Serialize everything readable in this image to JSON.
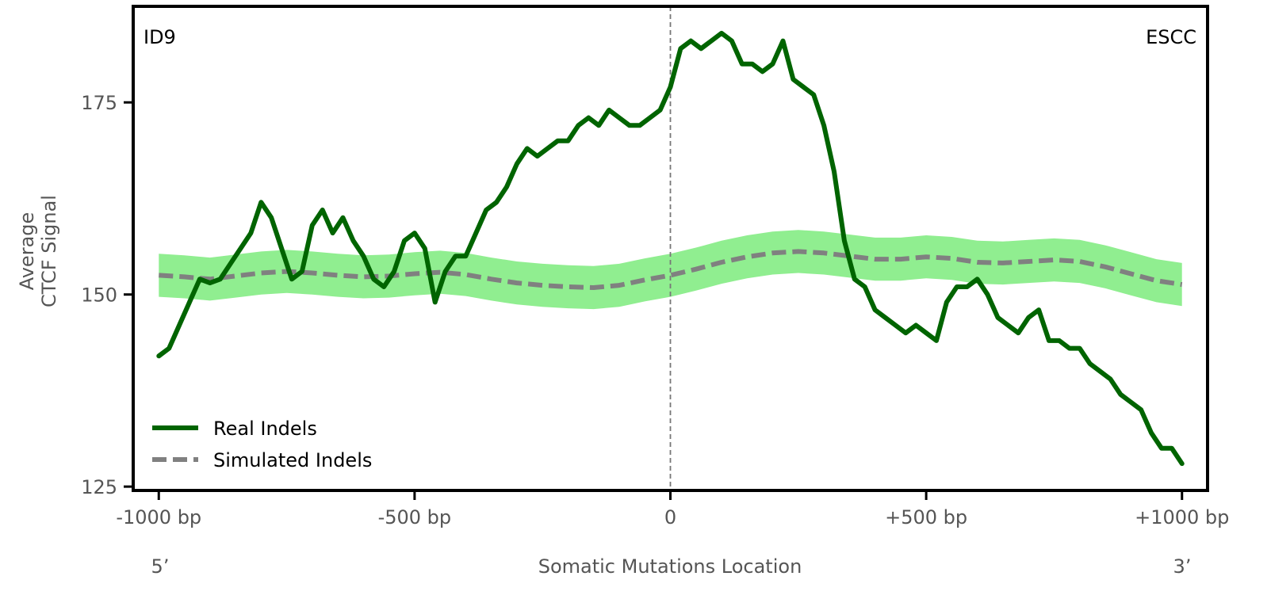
{
  "chart_data": {
    "type": "line",
    "panel_label_left": "ID9",
    "panel_label_right": "ESCC",
    "xlabel": "Somatic Mutations Location",
    "ylabel_line1": "Average",
    "ylabel_line2": "CTCF Signal",
    "end_label_left": "5’",
    "end_label_right": "3’",
    "xlim": [
      -1050,
      1050
    ],
    "ylim": [
      124.5,
      187.5
    ],
    "x_ticks": [
      {
        "value": -1000,
        "label": "-1000 bp"
      },
      {
        "value": -500,
        "label": "-500 bp"
      },
      {
        "value": 0,
        "label": "0"
      },
      {
        "value": 500,
        "label": "+500 bp"
      },
      {
        "value": 1000,
        "label": "+1000 bp"
      }
    ],
    "y_ticks": [
      {
        "value": 125,
        "label": "125"
      },
      {
        "value": 150,
        "label": "150"
      },
      {
        "value": 175,
        "label": "175"
      }
    ],
    "vline_x": 0,
    "legend_position": "lower-left",
    "colors": {
      "real": "#006400",
      "simulated": "#808080",
      "band": "#90EE90"
    },
    "series": [
      {
        "name": "Real Indels",
        "style": "solid",
        "x": [
          -1000,
          -980,
          -960,
          -940,
          -920,
          -900,
          -880,
          -860,
          -840,
          -820,
          -800,
          -780,
          -760,
          -740,
          -720,
          -700,
          -680,
          -660,
          -640,
          -620,
          -600,
          -580,
          -560,
          -540,
          -520,
          -500,
          -480,
          -460,
          -440,
          -420,
          -400,
          -380,
          -360,
          -340,
          -320,
          -300,
          -280,
          -260,
          -240,
          -220,
          -200,
          -180,
          -160,
          -140,
          -120,
          -100,
          -80,
          -60,
          -40,
          -20,
          0,
          20,
          40,
          60,
          80,
          100,
          120,
          140,
          160,
          180,
          200,
          220,
          240,
          260,
          280,
          300,
          320,
          340,
          360,
          380,
          400,
          420,
          440,
          460,
          480,
          500,
          520,
          540,
          560,
          580,
          600,
          620,
          640,
          660,
          680,
          700,
          720,
          740,
          760,
          780,
          800,
          820,
          840,
          860,
          880,
          900,
          920,
          940,
          960,
          980,
          1000
        ],
        "values": [
          142,
          143,
          146,
          149,
          152,
          151.5,
          152,
          154,
          156,
          158,
          162,
          160,
          156,
          152,
          153,
          159,
          161,
          158,
          160,
          157,
          155,
          152,
          151,
          153,
          157,
          158,
          156,
          149,
          153,
          155,
          155,
          158,
          161,
          162,
          164,
          167,
          169,
          168,
          169,
          170,
          170,
          172,
          173,
          172,
          174,
          173,
          172,
          172,
          173,
          174,
          177,
          182,
          183,
          182,
          183,
          184,
          183,
          180,
          180,
          179,
          180,
          183,
          178,
          177,
          176,
          172,
          166,
          157,
          152,
          151,
          148,
          147,
          146,
          145,
          146,
          145,
          144,
          149,
          151,
          151,
          152,
          150,
          147,
          146,
          145,
          147,
          148,
          144,
          144,
          143,
          143,
          141,
          140,
          139,
          137,
          136,
          135,
          132,
          130,
          130,
          128
        ]
      },
      {
        "name": "Simulated Indels",
        "style": "dashed",
        "x": [
          -1000,
          -950,
          -900,
          -850,
          -800,
          -750,
          -700,
          -650,
          -600,
          -550,
          -500,
          -450,
          -400,
          -350,
          -300,
          -250,
          -200,
          -150,
          -100,
          -50,
          0,
          50,
          100,
          150,
          200,
          250,
          300,
          350,
          400,
          450,
          500,
          550,
          600,
          650,
          700,
          750,
          800,
          850,
          900,
          950,
          1000
        ],
        "values": [
          152.5,
          152.3,
          152.0,
          152.4,
          152.8,
          153.0,
          152.8,
          152.5,
          152.3,
          152.4,
          152.7,
          152.9,
          152.6,
          152.0,
          151.5,
          151.2,
          151.0,
          150.9,
          151.2,
          151.9,
          152.5,
          153.3,
          154.2,
          154.9,
          155.4,
          155.6,
          155.4,
          155.0,
          154.6,
          154.6,
          154.9,
          154.7,
          154.2,
          154.1,
          154.3,
          154.5,
          154.3,
          153.6,
          152.7,
          151.8,
          151.3
        ],
        "band_halfwidth": 2.8
      }
    ]
  }
}
